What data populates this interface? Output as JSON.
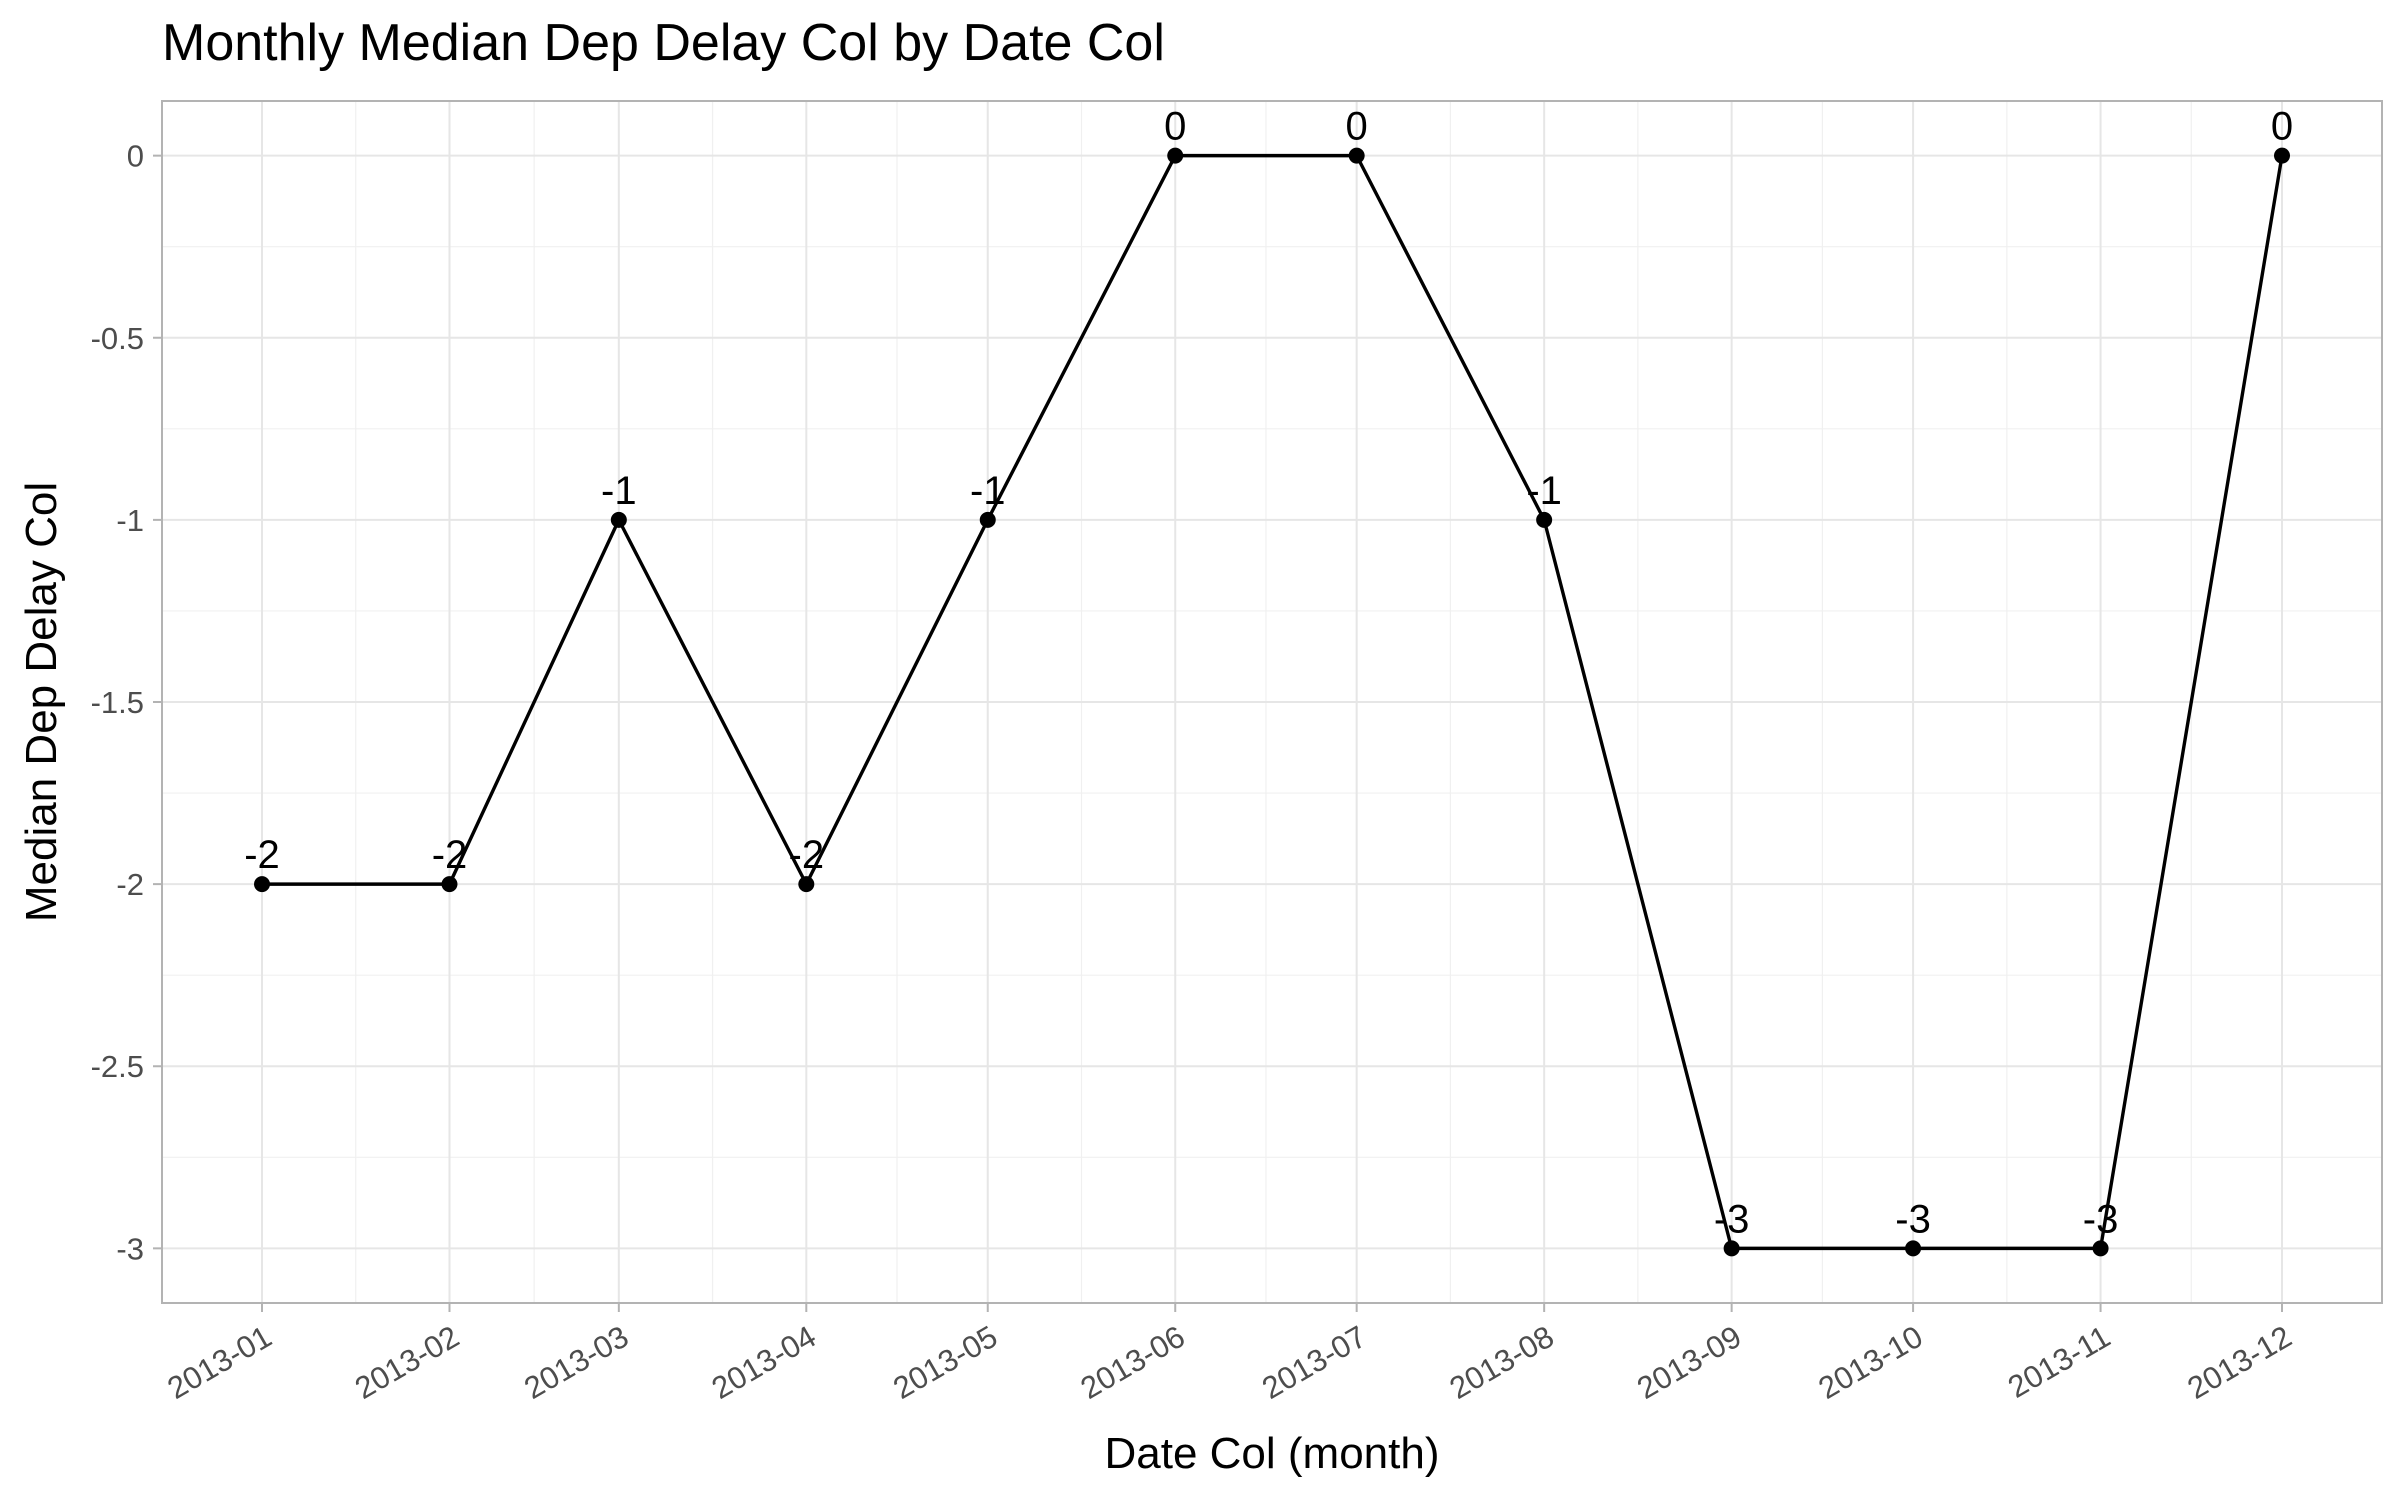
{
  "chart_data": {
    "type": "line",
    "title": "Monthly Median Dep Delay Col by Date Col",
    "xlabel": "Date Col (month)",
    "ylabel": "Median Dep Delay Col",
    "x": [
      "2013-01-01",
      "2013-02-01",
      "2013-03-01",
      "2013-04-01",
      "2013-05-01",
      "2013-06-01",
      "2013-07-01",
      "2013-08-01",
      "2013-09-01",
      "2013-10-01",
      "2013-11-01",
      "2013-12-01"
    ],
    "x_tick_labels": [
      "2013-01",
      "2013-02",
      "2013-03",
      "2013-04",
      "2013-05",
      "2013-06",
      "2013-07",
      "2013-08",
      "2013-09",
      "2013-10",
      "2013-11",
      "2013-12"
    ],
    "y_ticks": [
      0,
      -0.5,
      -1,
      -1.5,
      -2,
      -2.5,
      -3
    ],
    "y_tick_labels": [
      "0",
      "-0.5",
      "-1",
      "-1.5",
      "-2",
      "-2.5",
      "-3"
    ],
    "ylim": [
      -3.15,
      0.15
    ],
    "series": [
      {
        "values": [
          -2,
          -2,
          -1,
          -2,
          -1,
          0,
          0,
          -1,
          -3,
          -3,
          -3,
          0
        ],
        "data_labels": [
          "-2",
          "-2",
          "-1",
          "-2",
          "-1",
          "0",
          "0",
          "-1",
          "-3",
          "-3",
          "-3",
          "0"
        ]
      }
    ],
    "grid": true,
    "legend": "none",
    "line_color": "#000000"
  }
}
